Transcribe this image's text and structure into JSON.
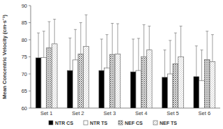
{
  "chart_data": {
    "type": "bar",
    "y_label": "Mean Concentric Velocity (cm·s⁻¹)",
    "categories": [
      "Set 1",
      "Set 2",
      "Set 3",
      "Set 4",
      "Set 5",
      "Set 6"
    ],
    "series": [
      {
        "name": "NTR CS",
        "color": "#000000",
        "values": [
          74.7,
          71.0,
          71.0,
          70.6,
          69.0,
          69.2
        ],
        "errors": [
          7.3,
          9.5,
          9.2,
          9.6,
          8.0,
          9.0
        ]
      },
      {
        "name": "NTR TS",
        "color": "#ffffff",
        "values": [
          74.8,
          74.1,
          71.7,
          71.0,
          70.0,
          68.0
        ],
        "errors": [
          7.7,
          8.9,
          9.8,
          9.4,
          9.8,
          9.0
        ]
      },
      {
        "name": "NEF CS",
        "color": "#7f7f7f",
        "values": [
          77.6,
          75.8,
          75.7,
          75.0,
          73.0,
          74.2
        ],
        "errors": [
          7.7,
          9.2,
          9.1,
          9.4,
          9.0,
          8.3
        ]
      },
      {
        "name": "NEF TS",
        "color": "#bfbfbf",
        "values": [
          78.8,
          78.1,
          75.8,
          77.0,
          75.0,
          73.6
        ],
        "errors": [
          7.2,
          9.2,
          8.9,
          7.0,
          9.0,
          7.9
        ]
      }
    ],
    "ylim": [
      60,
      90
    ],
    "yticks": [
      60,
      65,
      70,
      75,
      80,
      85,
      90
    ],
    "grid": false,
    "legend": "bottom"
  }
}
